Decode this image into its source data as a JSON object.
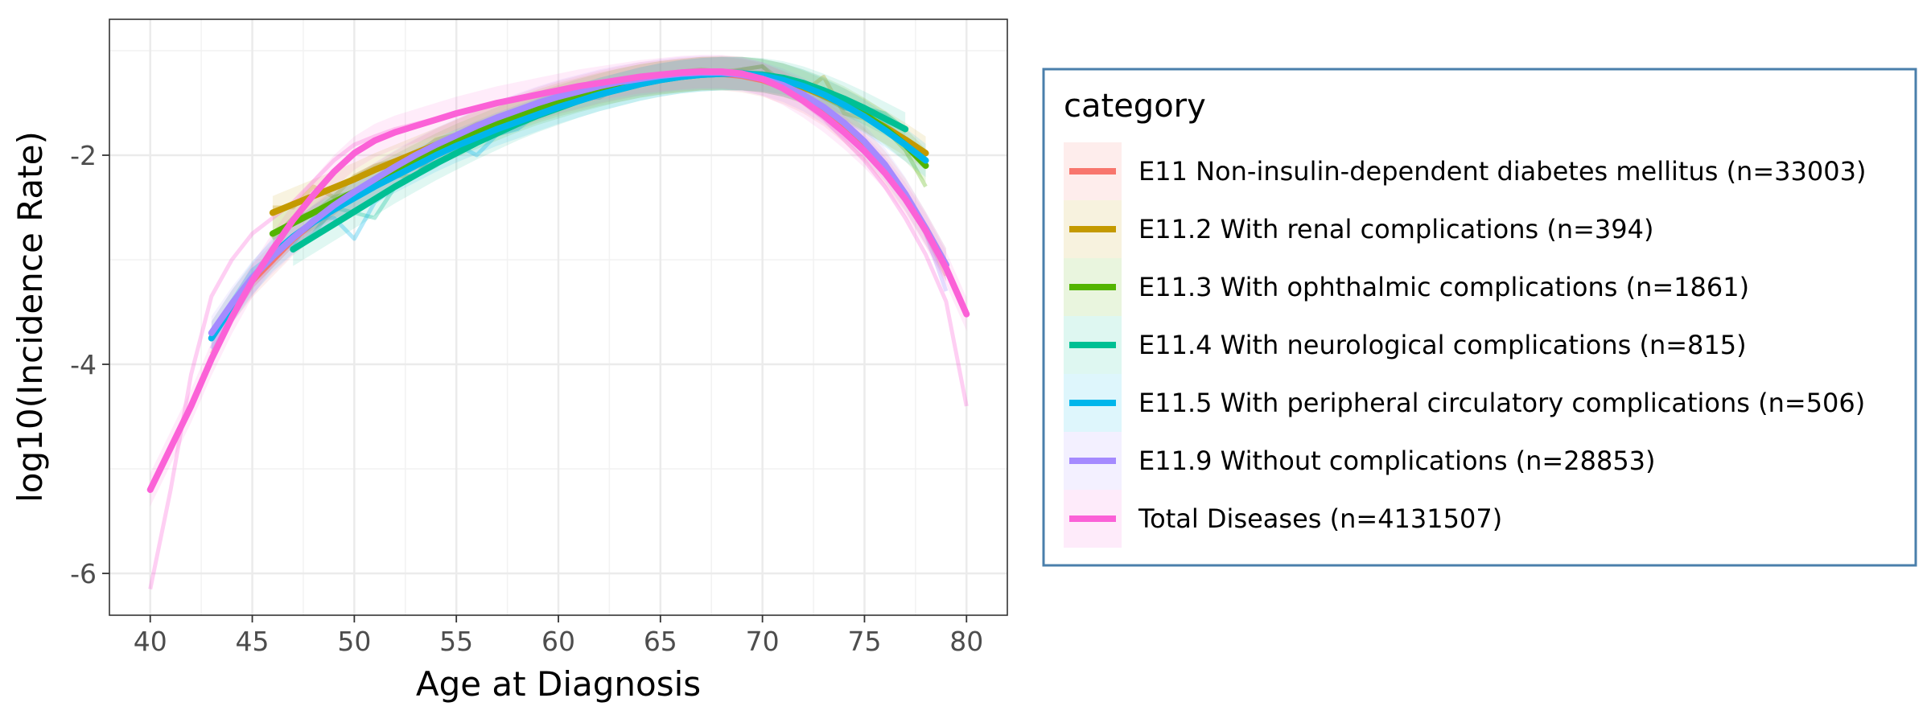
{
  "chart_data": {
    "type": "line",
    "xlabel": "Age at Diagnosis",
    "ylabel": "log10(Incidence Rate)",
    "xlim": [
      38,
      82
    ],
    "ylim": [
      -6.4,
      -0.7
    ],
    "xticks": [
      40,
      45,
      50,
      55,
      60,
      65,
      70,
      75,
      80
    ],
    "yticks": [
      -6,
      -4,
      -2
    ],
    "ytick_labels": [
      "-6",
      "-4",
      "-2"
    ],
    "grid": true,
    "legend": {
      "title": "category",
      "position": "right"
    },
    "series": [
      {
        "name": "E11 Non-insulin-dependent diabetes mellitus (n=33003)",
        "color": "#F8766D",
        "x": [
          43,
          44,
          45,
          46,
          47,
          48,
          49,
          50,
          51,
          52,
          53,
          54,
          55,
          56,
          57,
          58,
          59,
          60,
          61,
          62,
          63,
          64,
          65,
          66,
          67,
          68,
          69,
          70,
          71,
          72,
          73,
          74,
          75,
          76,
          77,
          78,
          79
        ],
        "raw": [
          -3.9,
          -3.55,
          -3.25,
          -3.05,
          -2.85,
          -2.7,
          -2.55,
          -2.4,
          -2.28,
          -2.15,
          -2.05,
          -1.95,
          -1.85,
          -1.75,
          -1.68,
          -1.6,
          -1.53,
          -1.47,
          -1.42,
          -1.37,
          -1.32,
          -1.28,
          -1.25,
          -1.23,
          -1.22,
          -1.22,
          -1.24,
          -1.28,
          -1.35,
          -1.44,
          -1.56,
          -1.72,
          -1.9,
          -2.12,
          -2.4,
          -2.75,
          -3.15
        ],
        "smooth": [
          -3.75,
          -3.45,
          -3.2,
          -3.0,
          -2.8,
          -2.64,
          -2.49,
          -2.36,
          -2.24,
          -2.12,
          -2.01,
          -1.91,
          -1.82,
          -1.73,
          -1.65,
          -1.58,
          -1.51,
          -1.45,
          -1.4,
          -1.35,
          -1.31,
          -1.27,
          -1.25,
          -1.23,
          -1.22,
          -1.22,
          -1.24,
          -1.28,
          -1.35,
          -1.44,
          -1.56,
          -1.72,
          -1.9,
          -2.12,
          -2.38,
          -2.7,
          -3.05
        ]
      },
      {
        "name": "E11.2 With renal complications (n=394)",
        "color": "#C49A00",
        "x": [
          46,
          47,
          48,
          49,
          50,
          51,
          52,
          53,
          54,
          55,
          56,
          57,
          58,
          59,
          60,
          61,
          62,
          63,
          64,
          65,
          66,
          67,
          68,
          69,
          70,
          71,
          72,
          73,
          74,
          75,
          76,
          77,
          78
        ],
        "raw": [
          -2.5,
          -2.5,
          -2.3,
          -2.4,
          -2.2,
          -2.1,
          -2.05,
          -2.0,
          -1.85,
          -1.8,
          -1.7,
          -1.65,
          -1.6,
          -1.5,
          -1.48,
          -1.42,
          -1.38,
          -1.3,
          -1.26,
          -1.22,
          -1.2,
          -1.18,
          -1.2,
          -1.18,
          -1.15,
          -1.35,
          -1.4,
          -1.25,
          -1.6,
          -1.65,
          -1.75,
          -1.9,
          -2.1
        ],
        "smooth": [
          -2.55,
          -2.47,
          -2.39,
          -2.31,
          -2.23,
          -2.14,
          -2.06,
          -1.98,
          -1.9,
          -1.82,
          -1.74,
          -1.67,
          -1.6,
          -1.53,
          -1.47,
          -1.42,
          -1.37,
          -1.33,
          -1.29,
          -1.26,
          -1.24,
          -1.22,
          -1.21,
          -1.22,
          -1.24,
          -1.28,
          -1.35,
          -1.43,
          -1.52,
          -1.62,
          -1.73,
          -1.85,
          -1.98
        ]
      },
      {
        "name": "E11.3 With ophthalmic complications (n=1861)",
        "color": "#53B400",
        "x": [
          46,
          47,
          48,
          49,
          50,
          51,
          52,
          53,
          54,
          55,
          56,
          57,
          58,
          59,
          60,
          61,
          62,
          63,
          64,
          65,
          66,
          67,
          68,
          69,
          70,
          71,
          72,
          73,
          74,
          75,
          76,
          77,
          78
        ],
        "raw": [
          -2.8,
          -2.6,
          -2.55,
          -2.4,
          -2.35,
          -2.25,
          -2.2,
          -2.2,
          -1.95,
          -1.8,
          -1.85,
          -1.75,
          -1.7,
          -1.55,
          -1.55,
          -1.45,
          -1.4,
          -1.35,
          -1.3,
          -1.25,
          -1.2,
          -1.2,
          -1.22,
          -1.18,
          -1.15,
          -1.3,
          -1.35,
          -1.45,
          -1.55,
          -1.6,
          -1.75,
          -1.95,
          -2.3
        ],
        "smooth": [
          -2.75,
          -2.65,
          -2.55,
          -2.45,
          -2.35,
          -2.25,
          -2.15,
          -2.05,
          -1.95,
          -1.86,
          -1.78,
          -1.7,
          -1.62,
          -1.55,
          -1.49,
          -1.43,
          -1.38,
          -1.33,
          -1.29,
          -1.26,
          -1.24,
          -1.22,
          -1.22,
          -1.22,
          -1.24,
          -1.28,
          -1.34,
          -1.41,
          -1.5,
          -1.61,
          -1.74,
          -1.9,
          -2.1
        ]
      },
      {
        "name": "E11.4 With neurological complications (n=815)",
        "color": "#00C094",
        "x": [
          47,
          48,
          49,
          50,
          51,
          52,
          53,
          54,
          55,
          56,
          57,
          58,
          59,
          60,
          61,
          62,
          63,
          64,
          65,
          66,
          67,
          68,
          69,
          70,
          71,
          72,
          73,
          74,
          75,
          76,
          77
        ],
        "raw": [
          -2.9,
          -2.75,
          -2.5,
          -2.55,
          -2.6,
          -2.3,
          -2.2,
          -2.1,
          -1.95,
          -1.85,
          -1.75,
          -1.7,
          -1.6,
          -1.55,
          -1.45,
          -1.45,
          -1.35,
          -1.3,
          -1.25,
          -1.22,
          -1.22,
          -1.2,
          -1.2,
          -1.25,
          -1.3,
          -1.35,
          -1.45,
          -1.5,
          -1.55,
          -1.6,
          -1.75
        ],
        "smooth": [
          -2.9,
          -2.78,
          -2.66,
          -2.54,
          -2.42,
          -2.3,
          -2.19,
          -2.08,
          -1.98,
          -1.88,
          -1.79,
          -1.7,
          -1.62,
          -1.55,
          -1.48,
          -1.42,
          -1.37,
          -1.32,
          -1.28,
          -1.25,
          -1.23,
          -1.22,
          -1.22,
          -1.23,
          -1.26,
          -1.31,
          -1.38,
          -1.46,
          -1.55,
          -1.65,
          -1.75
        ]
      },
      {
        "name": "E11.5 With peripheral circulatory complications (n=506)",
        "color": "#00B6EB",
        "x": [
          43,
          44,
          45,
          46,
          47,
          48,
          49,
          50,
          51,
          52,
          53,
          54,
          55,
          56,
          57,
          58,
          59,
          60,
          61,
          62,
          63,
          64,
          65,
          66,
          67,
          68,
          69,
          70,
          71,
          72,
          73,
          74,
          75,
          76,
          77,
          78
        ],
        "raw": [
          -3.7,
          -3.4,
          -3.1,
          -2.95,
          -2.85,
          -2.6,
          -2.6,
          -2.8,
          -2.45,
          -2.3,
          -2.2,
          -2.0,
          -1.9,
          -2.0,
          -1.8,
          -1.75,
          -1.6,
          -1.5,
          -1.45,
          -1.4,
          -1.35,
          -1.3,
          -1.25,
          -1.25,
          -1.2,
          -1.2,
          -1.2,
          -1.25,
          -1.3,
          -1.35,
          -1.4,
          -1.55,
          -1.6,
          -1.7,
          -1.85,
          -2.05
        ],
        "smooth": [
          -3.75,
          -3.45,
          -3.18,
          -2.95,
          -2.78,
          -2.64,
          -2.52,
          -2.41,
          -2.3,
          -2.2,
          -2.1,
          -2.0,
          -1.91,
          -1.83,
          -1.75,
          -1.68,
          -1.61,
          -1.54,
          -1.48,
          -1.42,
          -1.37,
          -1.32,
          -1.28,
          -1.25,
          -1.23,
          -1.22,
          -1.22,
          -1.24,
          -1.28,
          -1.34,
          -1.42,
          -1.52,
          -1.63,
          -1.76,
          -1.9,
          -2.05
        ]
      },
      {
        "name": "E11.9 Without complications (n=28853)",
        "color": "#A58AFF",
        "x": [
          43,
          44,
          45,
          46,
          47,
          48,
          49,
          50,
          51,
          52,
          53,
          54,
          55,
          56,
          57,
          58,
          59,
          60,
          61,
          62,
          63,
          64,
          65,
          66,
          67,
          68,
          69,
          70,
          71,
          72,
          73,
          74,
          75,
          76,
          77,
          78,
          79
        ],
        "raw": [
          -3.85,
          -3.5,
          -3.2,
          -3.0,
          -2.8,
          -2.65,
          -2.5,
          -2.38,
          -2.26,
          -2.14,
          -2.03,
          -1.93,
          -1.84,
          -1.75,
          -1.67,
          -1.6,
          -1.53,
          -1.47,
          -1.41,
          -1.36,
          -1.32,
          -1.28,
          -1.25,
          -1.23,
          -1.22,
          -1.22,
          -1.24,
          -1.28,
          -1.34,
          -1.43,
          -1.55,
          -1.7,
          -1.88,
          -2.1,
          -2.4,
          -2.75,
          -3.3
        ],
        "smooth": [
          -3.7,
          -3.42,
          -3.17,
          -2.97,
          -2.79,
          -2.63,
          -2.48,
          -2.35,
          -2.23,
          -2.11,
          -2.0,
          -1.9,
          -1.81,
          -1.72,
          -1.64,
          -1.57,
          -1.5,
          -1.44,
          -1.39,
          -1.34,
          -1.3,
          -1.27,
          -1.24,
          -1.22,
          -1.21,
          -1.21,
          -1.23,
          -1.27,
          -1.33,
          -1.42,
          -1.54,
          -1.69,
          -1.87,
          -2.09,
          -2.37,
          -2.7,
          -3.05
        ]
      },
      {
        "name": "Total Diseases (n=4131507)",
        "color": "#FB61D7",
        "x": [
          40,
          41,
          42,
          43,
          44,
          45,
          46,
          47,
          48,
          49,
          50,
          51,
          52,
          53,
          54,
          55,
          56,
          57,
          58,
          59,
          60,
          61,
          62,
          63,
          64,
          65,
          66,
          67,
          68,
          69,
          70,
          71,
          72,
          73,
          74,
          75,
          76,
          77,
          78,
          79,
          80
        ],
        "raw": [
          -6.15,
          -5.2,
          -4.1,
          -3.35,
          -3.0,
          -2.75,
          -2.6,
          -2.45,
          -2.25,
          -2.05,
          -1.9,
          -1.82,
          -1.75,
          -1.7,
          -1.65,
          -1.6,
          -1.55,
          -1.5,
          -1.46,
          -1.42,
          -1.38,
          -1.35,
          -1.31,
          -1.28,
          -1.25,
          -1.22,
          -1.2,
          -1.2,
          -1.2,
          -1.22,
          -1.25,
          -1.35,
          -1.5,
          -1.65,
          -1.85,
          -2.05,
          -2.3,
          -2.6,
          -2.95,
          -3.4,
          -4.4
        ],
        "smooth": [
          -5.2,
          -4.8,
          -4.4,
          -3.95,
          -3.55,
          -3.2,
          -2.9,
          -2.62,
          -2.38,
          -2.16,
          -1.98,
          -1.86,
          -1.78,
          -1.72,
          -1.66,
          -1.6,
          -1.55,
          -1.5,
          -1.46,
          -1.42,
          -1.38,
          -1.34,
          -1.31,
          -1.28,
          -1.25,
          -1.23,
          -1.21,
          -1.2,
          -1.2,
          -1.22,
          -1.27,
          -1.36,
          -1.48,
          -1.62,
          -1.78,
          -1.96,
          -2.17,
          -2.42,
          -2.72,
          -3.08,
          -3.52
        ]
      }
    ]
  }
}
